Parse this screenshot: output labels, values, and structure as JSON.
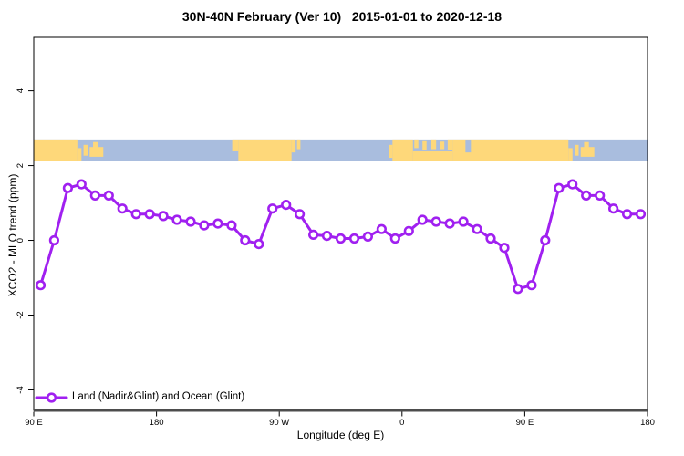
{
  "chart_data": {
    "type": "line",
    "title": "30N-40N February (Ver 10)   2015-01-01 to 2020-12-18",
    "xlabel": "Longitude (deg E)",
    "ylabel": "XCO2 - MLO trend (ppm)",
    "xlim": [
      90,
      540
    ],
    "ylim": [
      -4.55,
      5.43
    ],
    "grid": false,
    "legend_position": "bottom-left",
    "x_ticks": [
      {
        "value": 90,
        "label": "90 E"
      },
      {
        "value": 180,
        "label": "180"
      },
      {
        "value": 270,
        "label": "90 W"
      },
      {
        "value": 360,
        "label": "0"
      },
      {
        "value": 450,
        "label": "90 E"
      },
      {
        "value": 540,
        "label": "180"
      }
    ],
    "y_ticks": [
      {
        "value": 4,
        "label": "4"
      },
      {
        "value": 2,
        "label": "2"
      },
      {
        "value": 0,
        "label": "0"
      },
      {
        "value": -2,
        "label": "-2"
      },
      {
        "value": -4,
        "label": "-4"
      }
    ],
    "series": [
      {
        "name": "Land (Nadir&Glint) and Ocean (Glint)",
        "color": "#A020F0",
        "marker": "open-circle",
        "x": [
          95,
          105,
          115,
          125,
          135,
          145,
          155,
          165,
          175,
          185,
          195,
          205,
          215,
          225,
          235,
          245,
          255,
          265,
          275,
          285,
          295,
          305,
          315,
          325,
          335,
          345,
          355,
          365,
          375,
          385,
          395,
          405,
          415,
          425,
          435,
          445,
          455,
          465,
          475,
          485,
          495,
          505,
          515,
          525,
          535
        ],
        "values": [
          -1.2,
          0.0,
          1.4,
          1.5,
          1.2,
          1.2,
          0.85,
          0.7,
          0.7,
          0.65,
          0.55,
          0.5,
          0.4,
          0.45,
          0.4,
          0.0,
          -0.1,
          0.85,
          0.95,
          0.7,
          0.15,
          0.12,
          0.05,
          0.05,
          0.1,
          0.3,
          0.05,
          0.25,
          0.55,
          0.5,
          0.45,
          0.5,
          0.3,
          0.05,
          -0.2,
          -1.3,
          -1.2,
          0.0,
          1.4,
          1.5,
          1.2,
          1.2,
          0.85,
          0.7,
          0.7
        ]
      }
    ],
    "map_strip": {
      "ocean_color": "#A9BDDE",
      "land_color": "#FED87A",
      "ppm_top": 2.7,
      "ppm_bottom": 2.12,
      "segments": [
        {
          "kind": "land",
          "from": 90,
          "to": 122,
          "top": 0,
          "height": 1
        },
        {
          "kind": "land",
          "from": 122,
          "to": 125,
          "top": 0.4,
          "height": 0.6
        },
        {
          "kind": "land",
          "from": 126.5,
          "to": 129.5,
          "top": 0.25,
          "height": 0.5
        },
        {
          "kind": "land",
          "from": 131,
          "to": 141,
          "top": 0.35,
          "height": 0.45
        },
        {
          "kind": "land",
          "from": 133.5,
          "to": 137,
          "top": 0.12,
          "height": 0.4
        },
        {
          "kind": "land",
          "from": 235.5,
          "to": 240,
          "top": 0,
          "height": 0.55
        },
        {
          "kind": "land",
          "from": 240,
          "to": 279,
          "top": 0,
          "height": 1
        },
        {
          "kind": "land",
          "from": 279,
          "to": 282,
          "top": 0,
          "height": 0.6
        },
        {
          "kind": "land",
          "from": 283,
          "to": 285.5,
          "top": 0,
          "height": 0.45
        },
        {
          "kind": "land",
          "from": 350.5,
          "to": 353,
          "top": 0.25,
          "height": 0.6
        },
        {
          "kind": "land",
          "from": 353,
          "to": 368,
          "top": 0,
          "height": 1
        },
        {
          "kind": "land",
          "from": 368,
          "to": 397,
          "top": 0.55,
          "height": 0.45
        },
        {
          "kind": "land",
          "from": 369,
          "to": 372,
          "top": 0,
          "height": 0.4
        },
        {
          "kind": "land",
          "from": 375,
          "to": 378,
          "top": 0.08,
          "height": 0.42
        },
        {
          "kind": "land",
          "from": 381.5,
          "to": 385,
          "top": 0,
          "height": 0.45
        },
        {
          "kind": "land",
          "from": 388,
          "to": 391,
          "top": 0.1,
          "height": 0.35
        },
        {
          "kind": "land",
          "from": 393.5,
          "to": 397,
          "top": 0,
          "height": 0.5
        },
        {
          "kind": "land",
          "from": 397,
          "to": 482,
          "top": 0,
          "height": 1
        },
        {
          "kind": "ocean",
          "from": 406.5,
          "to": 410.5,
          "top": 0.05,
          "height": 0.55
        },
        {
          "kind": "land",
          "from": 482,
          "to": 485,
          "top": 0.4,
          "height": 0.6
        },
        {
          "kind": "land",
          "from": 486.5,
          "to": 489.5,
          "top": 0.25,
          "height": 0.5
        },
        {
          "kind": "land",
          "from": 491,
          "to": 501,
          "top": 0.35,
          "height": 0.45
        },
        {
          "kind": "land",
          "from": 493.5,
          "to": 497,
          "top": 0.12,
          "height": 0.4
        }
      ]
    }
  },
  "colors": {
    "axis_line": "#4d4d4d",
    "frame": "#000000",
    "background": "#ffffff",
    "text": "#000000"
  }
}
